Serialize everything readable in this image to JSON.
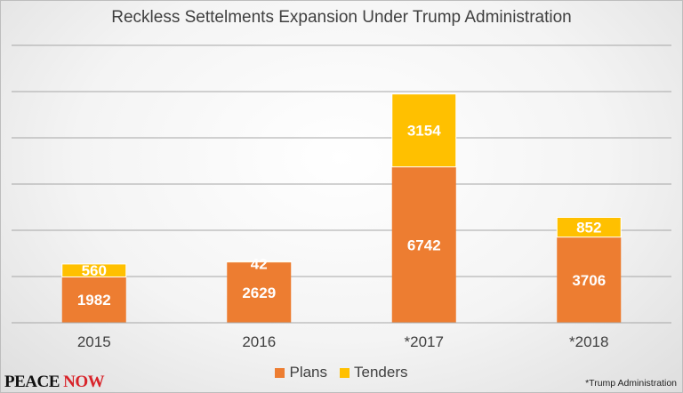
{
  "chart_data": {
    "type": "bar",
    "stacked": true,
    "title": "Reckless Settelments Expansion Under Trump Administration",
    "categories": [
      "2015",
      "2016",
      "*2017",
      "*2018"
    ],
    "series": [
      {
        "name": "Plans",
        "values": [
          1982,
          2629,
          6742,
          3706
        ]
      },
      {
        "name": "Tenders",
        "values": [
          560,
          42,
          3154,
          852
        ]
      }
    ],
    "ylim": [
      0,
      12000
    ],
    "gridlines": [
      2000,
      4000,
      6000,
      8000,
      10000,
      12000
    ],
    "grid": true,
    "xlabel": "",
    "ylabel": "",
    "legend_position": "bottom",
    "colors": {
      "Plans": "#ed7d31",
      "Tenders": "#ffc000",
      "label": "#ffffff",
      "grid": "#a6a6a6",
      "axis_text": "#404040"
    }
  },
  "logo": {
    "part1": "PEACE ",
    "part2": "NOW"
  },
  "footnote": "*Trump Administration"
}
